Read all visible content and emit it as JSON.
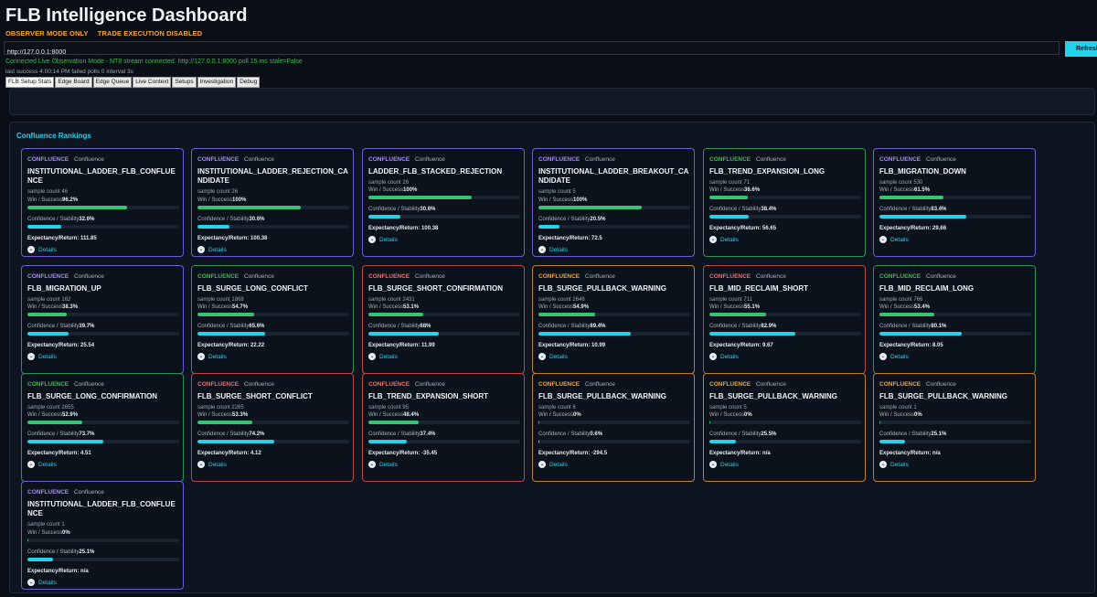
{
  "header": {
    "title": "FLB Intelligence Dashboard",
    "observer_mode": "OBSERVER MODE ONLY",
    "trade_mode": "TRADE EXECUTION DISABLED"
  },
  "endpoint": {
    "url": "http://127.0.0.1:8000",
    "refresh_label": "Refresh"
  },
  "status": {
    "line1": "Connected  Live Observation Mode - NT8 stream connected.  http://127.0.0.1:8000  poll 15 ms  stale=False",
    "line2": "last success 4:00:14 PM   failed polls 0   interval 3s"
  },
  "tabs": [
    "FLB Setup Stats",
    "Edge Board",
    "Edge Queue",
    "Live Context",
    "Setups",
    "Investigation",
    "Debug"
  ],
  "active_tab": 0,
  "section": {
    "title": "Confluence Rankings"
  },
  "labels": {
    "win": "Win / Success",
    "conf": "Confidence / Stability",
    "exp": "Expectancy/Return: ",
    "details": "Details",
    "sample_prefix": "sample count "
  },
  "colors": {
    "accent": "#22d3ee",
    "purple": "#a78bfa",
    "green": "#3fb950",
    "red": "#f26b6b",
    "orange": "#f2a33a",
    "win_bar": "#34c474"
  },
  "cards": [
    {
      "badge": "CONFLUENCE",
      "sub": "Confluence",
      "name": "INSTITUTIONAL_LADDER_FLB_CONFLUENCE",
      "sample": "46",
      "win": "96.2%",
      "win_frac": 0.654,
      "conf": "32.6%",
      "conf_frac": 0.22,
      "exp": "111.85",
      "tone": "purple"
    },
    {
      "badge": "CONFLUENCE",
      "sub": "Confluence",
      "name": "INSTITUTIONAL_LADDER_REJECTION_CANDIDATE",
      "sample": "26",
      "win": "100%",
      "win_frac": 0.68,
      "conf": "30.6%",
      "conf_frac": 0.21,
      "exp": "100.38",
      "tone": "purple"
    },
    {
      "badge": "CONFLUENCE",
      "sub": "Confluence",
      "name": "LADDER_FLB_STACKED_REJECTION",
      "sample": "26",
      "win": "100%",
      "win_frac": 0.68,
      "conf": "30.6%",
      "conf_frac": 0.21,
      "exp": "100.38",
      "tone": "purple"
    },
    {
      "badge": "CONFLUENCE",
      "sub": "Confluence",
      "name": "INSTITUTIONAL_LADDER_BREAKOUT_CANDIDATE",
      "sample": "5",
      "win": "100%",
      "win_frac": 0.68,
      "conf": "20.5%",
      "conf_frac": 0.14,
      "exp": "72.5",
      "tone": "purple"
    },
    {
      "badge": "CONFLUENCE",
      "sub": "Confluence",
      "name": "FLB_TREND_EXPANSION_LONG",
      "sample": "71",
      "win": "36.6%",
      "win_frac": 0.25,
      "conf": "38.4%",
      "conf_frac": 0.26,
      "exp": "56.65",
      "tone": "green"
    },
    {
      "badge": "CONFLUENCE",
      "sub": "Confluence",
      "name": "FLB_MIGRATION_DOWN",
      "sample": "530",
      "win": "61.5%",
      "win_frac": 0.42,
      "conf": "83.4%",
      "conf_frac": 0.57,
      "exp": "29.66",
      "tone": "purple"
    },
    {
      "badge": "CONFLUENCE",
      "sub": "Confluence",
      "name": "FLB_MIGRATION_UP",
      "sample": "162",
      "win": "38.3%",
      "win_frac": 0.26,
      "conf": "39.7%",
      "conf_frac": 0.27,
      "exp": "25.54",
      "tone": "purple"
    },
    {
      "badge": "CONFLUENCE",
      "sub": "Confluence",
      "name": "FLB_SURGE_LONG_CONFLICT",
      "sample": "1868",
      "win": "54.7%",
      "win_frac": 0.372,
      "conf": "65.6%",
      "conf_frac": 0.446,
      "exp": "22.22",
      "tone": "green"
    },
    {
      "badge": "CONFLUENCE",
      "sub": "Confluence",
      "name": "FLB_SURGE_SHORT_CONFIRMATION",
      "sample": "2431",
      "win": "53.1%",
      "win_frac": 0.361,
      "conf": "68%",
      "conf_frac": 0.462,
      "exp": "11.99",
      "tone": "red"
    },
    {
      "badge": "CONFLUENCE",
      "sub": "Confluence",
      "name": "FLB_SURGE_PULLBACK_WARNING",
      "sample": "2646",
      "win": "54.9%",
      "win_frac": 0.373,
      "conf": "89.4%",
      "conf_frac": 0.608,
      "exp": "10.99",
      "tone": "orange"
    },
    {
      "badge": "CONFLUENCE",
      "sub": "Confluence",
      "name": "FLB_MID_RECLAIM_SHORT",
      "sample": "711",
      "win": "55.1%",
      "win_frac": 0.375,
      "conf": "82.9%",
      "conf_frac": 0.564,
      "exp": "9.67",
      "tone": "red"
    },
    {
      "badge": "CONFLUENCE",
      "sub": "Confluence",
      "name": "FLB_MID_RECLAIM_LONG",
      "sample": "766",
      "win": "53.4%",
      "win_frac": 0.363,
      "conf": "80.1%",
      "conf_frac": 0.545,
      "exp": "8.05",
      "tone": "green"
    },
    {
      "badge": "CONFLUENCE",
      "sub": "Confluence",
      "name": "FLB_SURGE_LONG_CONFIRMATION",
      "sample": "2655",
      "win": "52.9%",
      "win_frac": 0.36,
      "conf": "73.7%",
      "conf_frac": 0.5,
      "exp": "4.51",
      "tone": "green"
    },
    {
      "badge": "CONFLUENCE",
      "sub": "Confluence",
      "name": "FLB_SURGE_SHORT_CONFLICT",
      "sample": "2265",
      "win": "53.3%",
      "win_frac": 0.362,
      "conf": "74.2%",
      "conf_frac": 0.505,
      "exp": "4.12",
      "tone": "red"
    },
    {
      "badge": "CONFLUENCE",
      "sub": "Confluence",
      "name": "FLB_TREND_EXPANSION_SHORT",
      "sample": "95",
      "win": "48.4%",
      "win_frac": 0.329,
      "conf": "37.4%",
      "conf_frac": 0.254,
      "exp": "-35.45",
      "tone": "red"
    },
    {
      "badge": "CONFLUENCE",
      "sub": "Confluence",
      "name": "FLB_SURGE_PULLBACK_WARNING",
      "sample": "6",
      "win": "0%",
      "win_frac": 0.005,
      "conf": "0.6%",
      "conf_frac": 0.005,
      "exp": "-294.5",
      "tone": "orange"
    },
    {
      "badge": "CONFLUENCE",
      "sub": "Confluence",
      "name": "FLB_SURGE_PULLBACK_WARNING",
      "sample": "5",
      "win": "0%",
      "win_frac": 0.005,
      "conf": "25.5%",
      "conf_frac": 0.173,
      "exp": "n/a",
      "tone": "orange"
    },
    {
      "badge": "CONFLUENCE",
      "sub": "Confluence",
      "name": "FLB_SURGE_PULLBACK_WARNING",
      "sample": "1",
      "win": "0%",
      "win_frac": 0.005,
      "conf": "25.1%",
      "conf_frac": 0.171,
      "exp": "n/a",
      "tone": "orange"
    },
    {
      "badge": "CONFLUENCE",
      "sub": "Confluence",
      "name": "INSTITUTIONAL_LADDER_FLB_CONFLUENCE",
      "sample": "1",
      "win": "0%",
      "win_frac": 0.005,
      "conf": "25.1%",
      "conf_frac": 0.171,
      "exp": "n/a",
      "tone": "purple"
    }
  ]
}
